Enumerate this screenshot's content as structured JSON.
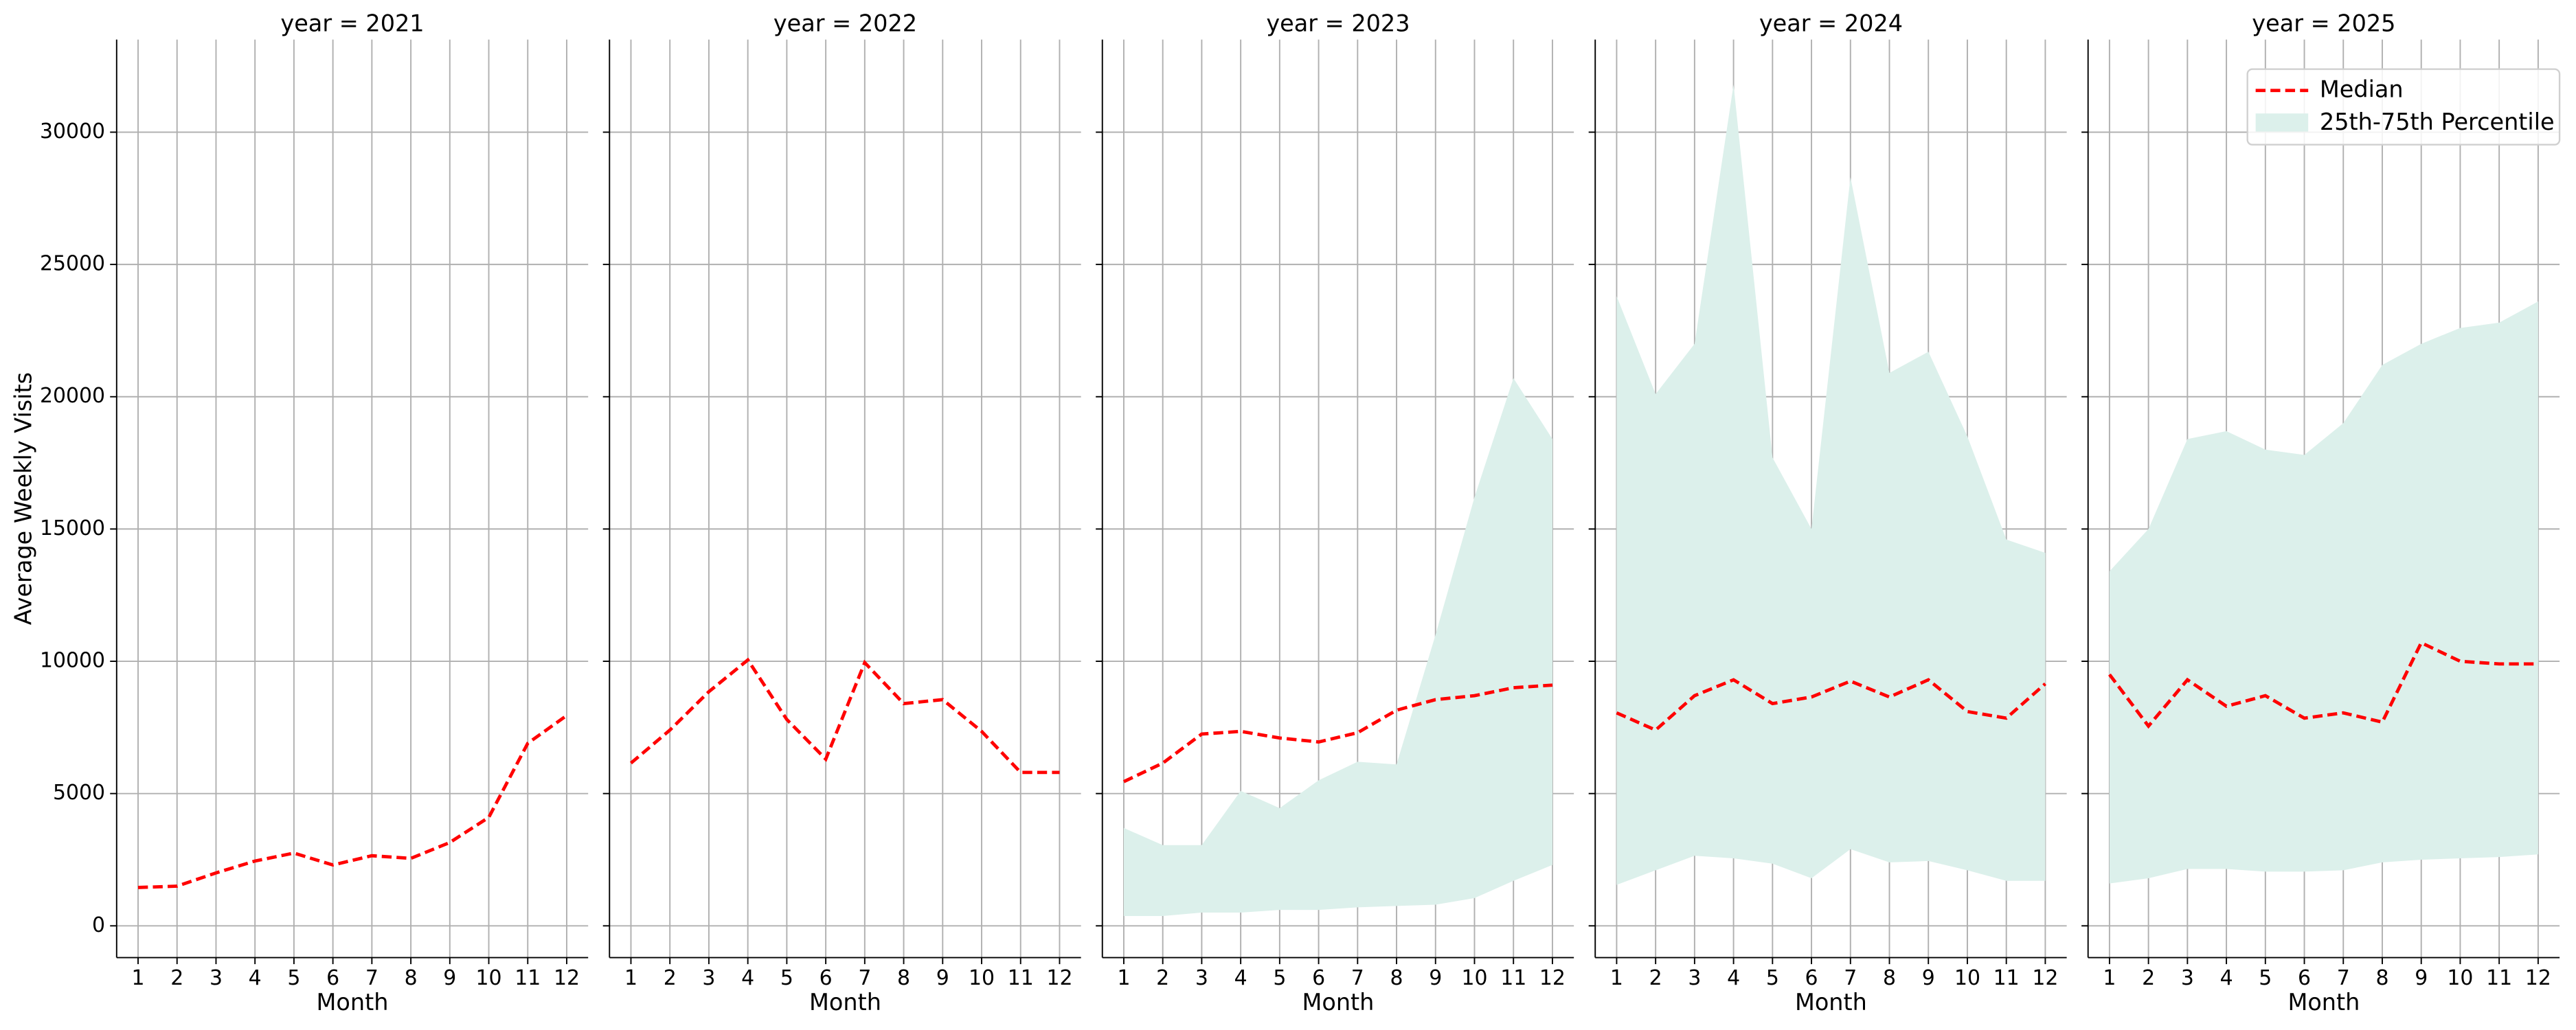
{
  "chart_data": [
    {
      "type": "line",
      "title": "year = 2021",
      "xlabel": "Month",
      "ylabel": "Average Weekly Visits",
      "x": [
        1,
        2,
        3,
        4,
        5,
        6,
        7,
        8,
        9,
        10,
        11,
        12
      ],
      "series": [
        {
          "color": "#ff0000",
          "values": [
            1450,
            1500,
            2000,
            2450,
            2750,
            2300,
            2650,
            2550,
            3150,
            4100,
            6900,
            7950
          ]
        }
      ],
      "xlim": [
        0.45,
        12.55
      ],
      "ylim": [
        -1200,
        33500
      ],
      "xticks": [
        1,
        2,
        3,
        4,
        5,
        6,
        7,
        8,
        9,
        10,
        11,
        12
      ],
      "yticks": [
        0,
        5000,
        10000,
        15000,
        20000,
        25000,
        30000
      ],
      "grid": true
    },
    {
      "type": "line",
      "title": "year = 2022",
      "xlabel": "Month",
      "x": [
        1,
        2,
        3,
        4,
        5,
        6,
        7,
        8,
        9,
        10,
        11,
        12
      ],
      "series": [
        {
          "color": "#ff0000",
          "values": [
            6150,
            7400,
            8850,
            10050,
            7800,
            6300,
            9950,
            8400,
            8550,
            7350,
            5800,
            5800
          ]
        }
      ],
      "xlim": [
        0.45,
        12.55
      ],
      "ylim": [
        -1200,
        33500
      ],
      "xticks": [
        1,
        2,
        3,
        4,
        5,
        6,
        7,
        8,
        9,
        10,
        11,
        12
      ],
      "grid": true
    },
    {
      "type": "line",
      "title": "year = 2023",
      "xlabel": "Month",
      "x": [
        1,
        2,
        3,
        4,
        5,
        6,
        7,
        8,
        9,
        10,
        11,
        12
      ],
      "series": [
        {
          "color": "#ff0000",
          "values": [
            5450,
            6150,
            7250,
            7350,
            7100,
            6950,
            7300,
            8150,
            8550,
            8700,
            9000,
            9100
          ]
        }
      ],
      "band": {
        "color": "#dcf0eb",
        "lower": [
          370,
          370,
          500,
          500,
          600,
          600,
          700,
          750,
          800,
          1050,
          1700,
          2300
        ],
        "upper": [
          3700,
          3050,
          3050,
          5100,
          4450,
          5500,
          6200,
          6100,
          11000,
          16200,
          20700,
          18400
        ]
      },
      "xlim": [
        0.45,
        12.55
      ],
      "ylim": [
        -1200,
        33500
      ],
      "xticks": [
        1,
        2,
        3,
        4,
        5,
        6,
        7,
        8,
        9,
        10,
        11,
        12
      ],
      "grid": true
    },
    {
      "type": "line",
      "title": "year = 2024",
      "xlabel": "Month",
      "x": [
        1,
        2,
        3,
        4,
        5,
        6,
        7,
        8,
        9,
        10,
        11,
        12
      ],
      "series": [
        {
          "color": "#ff0000",
          "values": [
            8050,
            7400,
            8700,
            9300,
            8400,
            8650,
            9250,
            8650,
            9300,
            8100,
            7850,
            9150
          ]
        }
      ],
      "band": {
        "color": "#dcf0eb",
        "lower": [
          1550,
          2100,
          2650,
          2550,
          2350,
          1800,
          2900,
          2400,
          2450,
          2100,
          1700,
          1700
        ],
        "upper": [
          23800,
          20100,
          22000,
          31800,
          17700,
          15000,
          28300,
          20900,
          21700,
          18500,
          14600,
          14100
        ]
      },
      "xlim": [
        0.45,
        12.55
      ],
      "ylim": [
        -1200,
        33500
      ],
      "xticks": [
        1,
        2,
        3,
        4,
        5,
        6,
        7,
        8,
        9,
        10,
        11,
        12
      ],
      "grid": true
    },
    {
      "type": "line",
      "title": "year = 2025",
      "xlabel": "Month",
      "x": [
        1,
        2,
        3,
        4,
        5,
        6,
        7,
        8,
        9,
        10,
        11,
        12
      ],
      "series": [
        {
          "name": "Median",
          "color": "#ff0000",
          "values": [
            9500,
            7550,
            9300,
            8300,
            8700,
            7850,
            8050,
            7700,
            10700,
            10000,
            9900,
            9900
          ]
        }
      ],
      "band": {
        "name": "25th-75th Percentile",
        "color": "#dcf0eb",
        "lower": [
          1600,
          1800,
          2150,
          2150,
          2050,
          2050,
          2100,
          2400,
          2500,
          2550,
          2600,
          2700
        ],
        "upper": [
          13400,
          15000,
          18400,
          18700,
          18000,
          17800,
          19000,
          21200,
          22000,
          22600,
          22800,
          23600
        ]
      },
      "legend": "upper right",
      "xlim": [
        0.45,
        12.55
      ],
      "ylim": [
        -1200,
        33500
      ],
      "xticks": [
        1,
        2,
        3,
        4,
        5,
        6,
        7,
        8,
        9,
        10,
        11,
        12
      ],
      "grid": true
    }
  ]
}
